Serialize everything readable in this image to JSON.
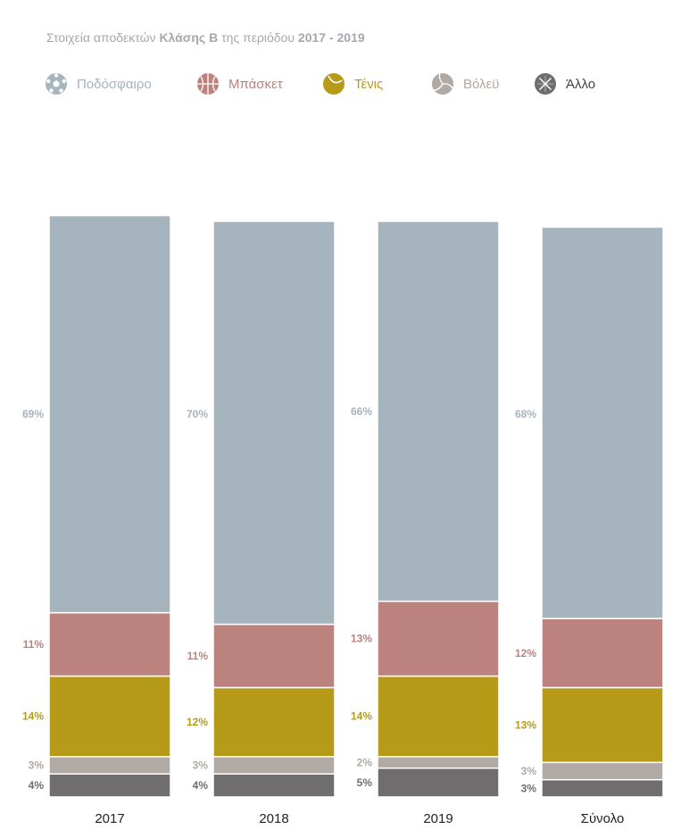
{
  "title": {
    "part1": "Στοιχεία αποδεκτών ",
    "part2": "Κλάσης Β",
    "part3": " της περιόδου ",
    "part4": "2017 - 2019"
  },
  "legend": [
    {
      "label": "Ποδόσφαιρο",
      "icon": "football-icon",
      "color": "#a5b4bd"
    },
    {
      "label": "Μπάσκετ",
      "icon": "basketball-icon",
      "color": "#bc827e"
    },
    {
      "label": "Τένις",
      "icon": "tennis-ball-icon",
      "color": "#b69b19"
    },
    {
      "label": "Βόλεϋ",
      "icon": "volleyball-icon",
      "color": "#b1a9a3"
    },
    {
      "label": "Άλλο",
      "icon": "other-sport-icon",
      "color": "#6f6d6e"
    }
  ],
  "chart_data": {
    "type": "bar",
    "stacked": true,
    "percent": true,
    "categories": [
      "2017",
      "2018",
      "2019",
      "Σύνολο"
    ],
    "series": [
      {
        "name": "Ποδόσφαιρο",
        "color": "#a5b4bd",
        "values": [
          69,
          70,
          66,
          68
        ],
        "labels": [
          "69%",
          "70%",
          "66%",
          "68%"
        ]
      },
      {
        "name": "Μπάσκετ",
        "color": "#bc827e",
        "values": [
          11,
          11,
          13,
          12
        ],
        "labels": [
          "11%",
          "11%",
          "13%",
          "12%"
        ]
      },
      {
        "name": "Τένις",
        "color": "#b69b19",
        "values": [
          14,
          12,
          14,
          13
        ],
        "labels": [
          "14%",
          "12%",
          "14%",
          "13%"
        ]
      },
      {
        "name": "Βόλεϋ",
        "color": "#b1a9a3",
        "values": [
          3,
          3,
          2,
          3
        ],
        "labels": [
          "3%",
          "3%",
          "2%",
          "3%"
        ]
      },
      {
        "name": "Άλλο",
        "color": "#6f6d6e",
        "values": [
          4,
          4,
          5,
          3
        ],
        "labels": [
          "4%",
          "4%",
          "5%",
          "3%"
        ]
      }
    ],
    "legend_position": "top-left",
    "grid": false
  }
}
